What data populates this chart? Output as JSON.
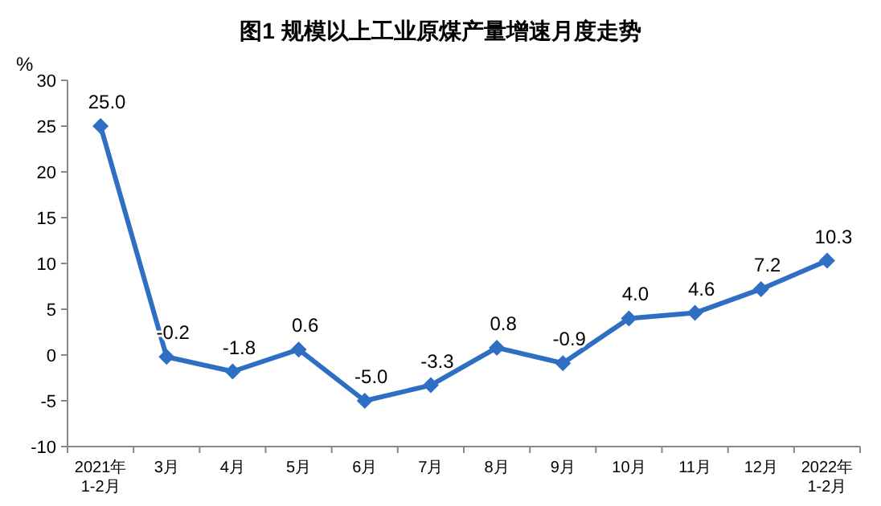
{
  "chart_data": {
    "type": "line",
    "title": "图1  规模以上工业原煤产量增速月度走势",
    "ylabel": "%",
    "categories": [
      "2021年\n1-2月",
      "3月",
      "4月",
      "5月",
      "6月",
      "7月",
      "8月",
      "9月",
      "10月",
      "11月",
      "12月",
      "2022年\n1-2月"
    ],
    "series": [
      {
        "color": "#2e6fc4",
        "values": [
          25.0,
          -0.2,
          -1.8,
          0.6,
          -5.0,
          -3.3,
          0.8,
          -0.9,
          4.0,
          4.6,
          7.2,
          10.3
        ],
        "value_labels": [
          "25.0",
          "-0.2",
          "-1.8",
          "0.6",
          "-5.0",
          "-3.3",
          "0.8",
          "-0.9",
          "4.0",
          "4.6",
          "7.2",
          "10.3"
        ]
      }
    ],
    "ylim": [
      -10,
      30
    ],
    "yticks": [
      -10,
      -5,
      0,
      5,
      10,
      15,
      20,
      25,
      30
    ],
    "marker": "diamond",
    "line_style": "solid",
    "grid": false
  }
}
